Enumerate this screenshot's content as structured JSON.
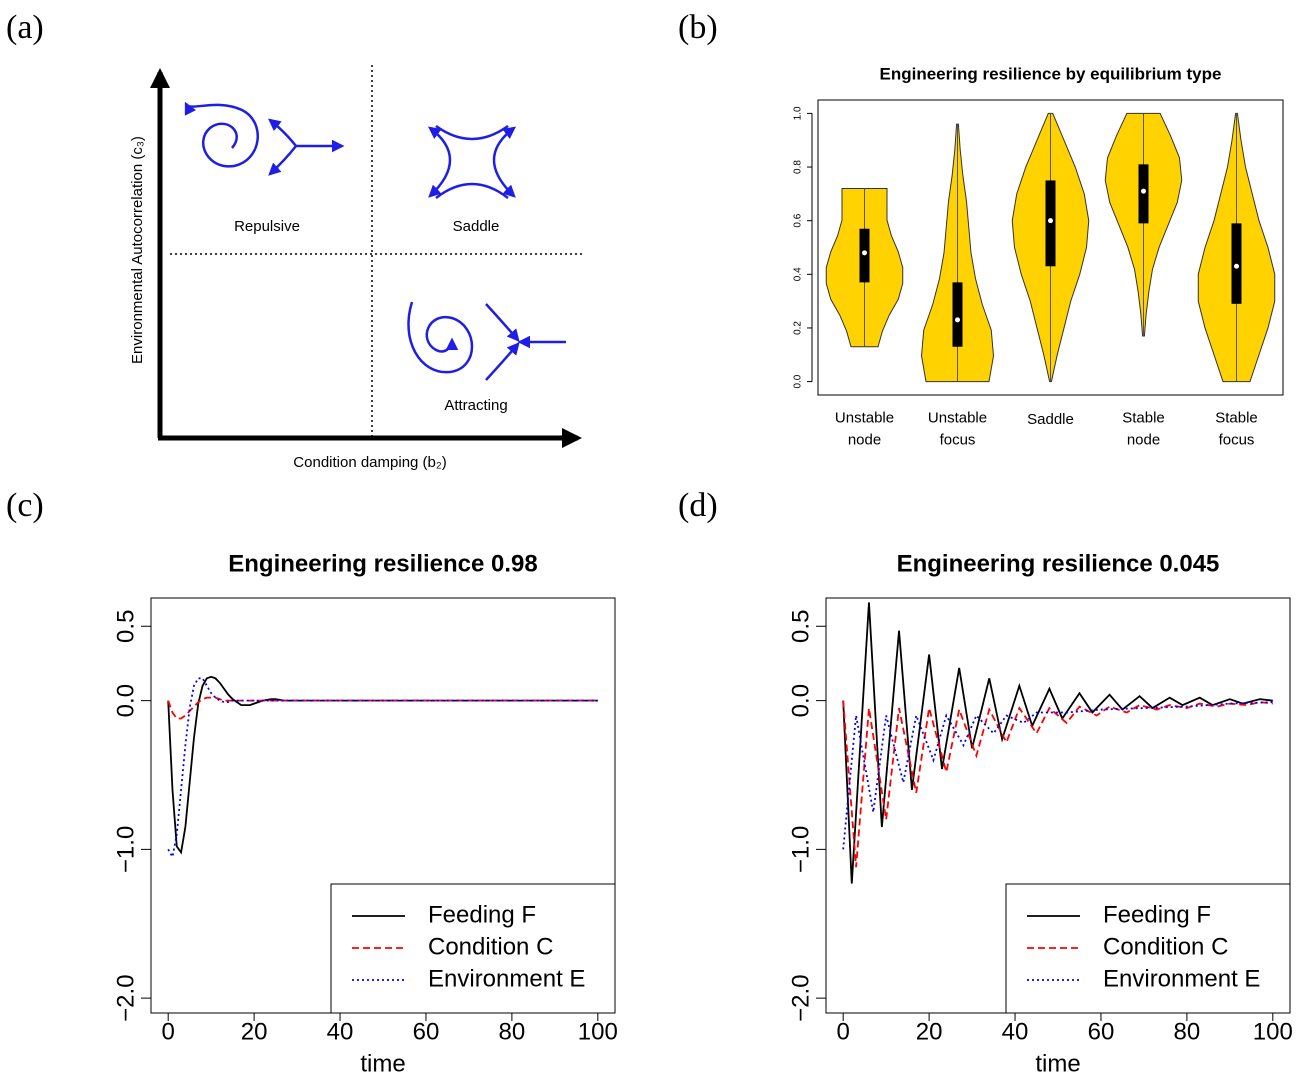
{
  "panel_labels": [
    "(a)",
    "(b)",
    "(c)",
    "(d)"
  ],
  "diagram": {
    "x_label": "Condition damping (b₂)",
    "y_label": "Environmental Autocorrelation (c₃)",
    "quadrants": [
      "Repulsive",
      "Saddle",
      "Attracting"
    ]
  },
  "chart_data": [
    {
      "type": "violin",
      "title": "Engineering resilience by equilibrium type",
      "color": "#ffd200",
      "ylim": [
        -0.05,
        1.05
      ],
      "yticks": [
        {
          "value": 0,
          "label": "0.0"
        },
        0.2,
        0.4,
        0.6,
        0.8,
        {
          "value": 1,
          "label": "1.0"
        }
      ],
      "series": [
        {
          "name": "Unstable node",
          "min": 0.13,
          "q1": 0.37,
          "median": 0.48,
          "q3": 0.57,
          "max": 0.72,
          "density": [
            0.3,
            0.4,
            0.55,
            0.75,
            0.85,
            0.85,
            0.75,
            0.6,
            0.5,
            0.5,
            0.5
          ]
        },
        {
          "name": "Unstable focus",
          "min": 0,
          "q1": 0.13,
          "median": 0.23,
          "q3": 0.37,
          "max": 0.96,
          "density": [
            0.7,
            0.8,
            0.75,
            0.55,
            0.4,
            0.3,
            0.25,
            0.2,
            0.12,
            0.06,
            0.02
          ]
        },
        {
          "name": "Saddle",
          "min": 0,
          "q1": 0.43,
          "median": 0.6,
          "q3": 0.75,
          "max": 1,
          "density": [
            0.02,
            0.15,
            0.3,
            0.45,
            0.65,
            0.8,
            0.85,
            0.75,
            0.55,
            0.3,
            0.05
          ]
        },
        {
          "name": "Stable node",
          "min": 0.17,
          "q1": 0.59,
          "median": 0.71,
          "q3": 0.81,
          "max": 1,
          "density": [
            0.02,
            0.06,
            0.12,
            0.2,
            0.35,
            0.55,
            0.75,
            0.85,
            0.8,
            0.6,
            0.37
          ]
        },
        {
          "name": "Stable focus",
          "min": 0,
          "q1": 0.29,
          "median": 0.43,
          "q3": 0.59,
          "max": 1,
          "density": [
            0.3,
            0.5,
            0.7,
            0.85,
            0.85,
            0.7,
            0.5,
            0.35,
            0.2,
            0.1,
            0.02
          ]
        }
      ]
    },
    {
      "type": "line",
      "title": "Engineering resilience 0.98",
      "x_label": "time",
      "xlim": [
        -4,
        104
      ],
      "ylim": [
        -2.1,
        0.69
      ],
      "xticks": [
        0,
        20,
        40,
        60,
        80,
        100
      ],
      "yticks": [
        {
          "value": -2,
          "label": "−2.0"
        },
        {
          "value": -1,
          "label": "−1.0"
        },
        {
          "value": 0,
          "label": "0.0"
        },
        0.5
      ],
      "legend": "bottomright",
      "series": [
        {
          "name": "Feeding F",
          "color": "#000000",
          "style": "solid",
          "x": [
            0,
            1,
            2,
            3,
            4,
            5,
            6,
            7,
            8,
            9,
            10,
            11,
            12,
            13,
            14,
            15,
            16,
            17,
            18,
            19,
            20,
            21,
            22,
            23,
            24,
            25,
            26,
            27,
            28,
            29,
            30,
            40,
            50,
            60,
            70,
            80,
            90,
            100
          ],
          "values": [
            0,
            -0.6,
            -0.98,
            -1.02,
            -0.85,
            -0.55,
            -0.25,
            -0.02,
            0.1,
            0.15,
            0.16,
            0.15,
            0.12,
            0.08,
            0.04,
            0.01,
            -0.01,
            -0.03,
            -0.03,
            -0.03,
            -0.02,
            -0.01,
            0,
            0.005,
            0.01,
            0.01,
            0.005,
            0,
            0,
            0,
            0,
            0,
            0,
            0,
            0,
            0,
            0,
            0
          ]
        },
        {
          "name": "Condition C",
          "color": "#ff0000",
          "style": "dashed",
          "x": [
            0,
            1,
            2,
            3,
            4,
            5,
            6,
            7,
            8,
            9,
            10,
            11,
            12,
            13,
            14,
            15,
            20,
            30,
            40,
            50,
            60,
            70,
            80,
            90,
            100
          ],
          "values": [
            0,
            -0.08,
            -0.12,
            -0.12,
            -0.1,
            -0.07,
            -0.04,
            -0.01,
            0.01,
            0.02,
            0.02,
            0.02,
            0.01,
            0,
            0,
            0,
            0,
            0,
            0,
            0,
            0,
            0,
            0,
            0,
            0
          ]
        },
        {
          "name": "Environment E",
          "color": "#0000ff",
          "style": "dotted",
          "x": [
            0,
            1,
            2,
            3,
            4,
            5,
            6,
            7,
            8,
            9,
            10,
            11,
            12,
            13,
            14,
            15,
            20,
            30,
            40,
            50,
            60,
            70,
            80,
            90,
            100
          ],
          "values": [
            -1,
            -1.05,
            -0.9,
            -0.6,
            -0.3,
            -0.05,
            0.1,
            0.15,
            0.15,
            0.1,
            0.05,
            0.02,
            0,
            -0.01,
            -0.01,
            0,
            0,
            0,
            0,
            0,
            0,
            0,
            0,
            0,
            0
          ]
        }
      ]
    },
    {
      "type": "line",
      "title": "Engineering resilience 0.045",
      "x_label": "time",
      "xlim": [
        -4,
        104
      ],
      "ylim": [
        -2.1,
        0.69
      ],
      "xticks": [
        0,
        20,
        40,
        60,
        80,
        100
      ],
      "yticks": [
        {
          "value": -2,
          "label": "−2.0"
        },
        {
          "value": -1,
          "label": "−1.0"
        },
        {
          "value": 0,
          "label": "0.0"
        },
        0.5
      ],
      "legend": "bottomright",
      "series": [
        {
          "name": "Feeding F",
          "color": "#000000",
          "style": "solid",
          "x": [
            0,
            2,
            6,
            9,
            13,
            16,
            20,
            23,
            27,
            30,
            34,
            37,
            41,
            44,
            48,
            51,
            55,
            58,
            62,
            65,
            69,
            72,
            76,
            79,
            83,
            86,
            90,
            93,
            97,
            100
          ],
          "values": [
            0,
            -1.23,
            0.66,
            -0.85,
            0.47,
            -0.6,
            0.31,
            -0.46,
            0.22,
            -0.32,
            0.15,
            -0.26,
            0.1,
            -0.17,
            0.08,
            -0.12,
            0.05,
            -0.08,
            0.04,
            -0.06,
            0.03,
            -0.05,
            0.02,
            -0.03,
            0.02,
            -0.03,
            0.01,
            -0.02,
            0.01,
            0
          ]
        },
        {
          "name": "Condition C",
          "color": "#ff0000",
          "style": "dashed",
          "x": [
            0,
            3,
            6,
            10,
            13,
            17,
            20,
            24,
            27,
            31,
            34,
            38,
            41,
            45,
            48,
            52,
            55,
            59,
            62,
            66,
            69,
            73,
            76,
            80,
            83,
            87,
            90,
            94,
            97,
            100
          ],
          "values": [
            0,
            -1.12,
            -0.05,
            -0.8,
            -0.05,
            -0.62,
            -0.05,
            -0.48,
            -0.06,
            -0.37,
            -0.06,
            -0.28,
            -0.05,
            -0.22,
            -0.05,
            -0.15,
            -0.04,
            -0.1,
            -0.04,
            -0.08,
            -0.03,
            -0.06,
            -0.03,
            -0.05,
            -0.02,
            -0.04,
            -0.02,
            -0.03,
            -0.01,
            -0.02
          ]
        },
        {
          "name": "Environment E",
          "color": "#0000ff",
          "style": "dotted",
          "x": [
            0,
            3,
            7,
            10,
            14,
            17,
            21,
            24,
            28,
            31,
            35,
            38,
            42,
            45,
            52,
            60,
            70,
            80,
            90,
            100
          ],
          "values": [
            -1,
            -0.1,
            -0.75,
            -0.1,
            -0.55,
            -0.1,
            -0.4,
            -0.1,
            -0.3,
            -0.1,
            -0.22,
            -0.1,
            -0.15,
            -0.08,
            -0.08,
            -0.06,
            -0.05,
            -0.04,
            -0.02,
            -0.01
          ]
        }
      ]
    }
  ]
}
